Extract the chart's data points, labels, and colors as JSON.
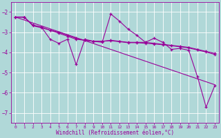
{
  "xlabel": "Windchill (Refroidissement éolien,°C)",
  "background_color": "#b0d8d8",
  "grid_color": "#c8e8e8",
  "line_color": "#990099",
  "xlim": [
    -0.5,
    23.5
  ],
  "ylim": [
    -7.5,
    -1.5
  ],
  "yticks": [
    -7,
    -6,
    -5,
    -4,
    -3,
    -2
  ],
  "xticks": [
    0,
    1,
    2,
    3,
    4,
    5,
    6,
    7,
    8,
    9,
    10,
    11,
    12,
    13,
    14,
    15,
    16,
    17,
    18,
    19,
    20,
    21,
    22,
    23
  ],
  "series1_x": [
    0,
    1,
    2,
    3,
    4,
    5,
    6,
    7,
    8,
    9,
    10,
    11,
    12,
    13,
    14,
    15,
    16,
    17,
    18,
    19,
    20,
    21,
    22,
    23
  ],
  "series1_y": [
    -2.25,
    -2.25,
    -2.65,
    -2.75,
    -3.35,
    -3.55,
    -3.35,
    -4.6,
    -3.35,
    -3.45,
    -3.5,
    -2.1,
    -2.45,
    -2.85,
    -3.15,
    -3.5,
    -3.3,
    -3.5,
    -3.85,
    -3.8,
    -3.9,
    -5.2,
    -6.7,
    -5.65
  ],
  "series2_x": [
    0,
    1,
    2,
    3,
    4,
    5,
    6,
    7,
    8,
    9,
    10,
    11,
    12,
    13,
    14,
    15,
    16,
    17,
    18,
    19,
    20,
    21,
    22,
    23
  ],
  "series2_y": [
    -2.25,
    -2.25,
    -2.65,
    -2.75,
    -2.9,
    -3.05,
    -3.2,
    -3.35,
    -3.4,
    -3.45,
    -3.45,
    -3.4,
    -3.45,
    -3.5,
    -3.5,
    -3.5,
    -3.55,
    -3.6,
    -3.65,
    -3.7,
    -3.75,
    -3.85,
    -3.95,
    -4.05
  ],
  "series3_x": [
    0,
    1,
    2,
    3,
    4,
    5,
    6,
    7,
    8,
    9,
    10,
    11,
    12,
    13,
    14,
    15,
    16,
    17,
    18,
    19,
    20,
    21,
    22,
    23
  ],
  "series3_y": [
    -2.25,
    -2.25,
    -2.68,
    -2.78,
    -2.9,
    -3.0,
    -3.15,
    -3.3,
    -3.4,
    -3.45,
    -3.45,
    -3.42,
    -3.47,
    -3.52,
    -3.52,
    -3.55,
    -3.58,
    -3.62,
    -3.67,
    -3.72,
    -3.78,
    -3.88,
    -3.98,
    -4.1
  ],
  "trend_x": [
    0,
    23
  ],
  "trend_y": [
    -2.25,
    -5.6
  ]
}
